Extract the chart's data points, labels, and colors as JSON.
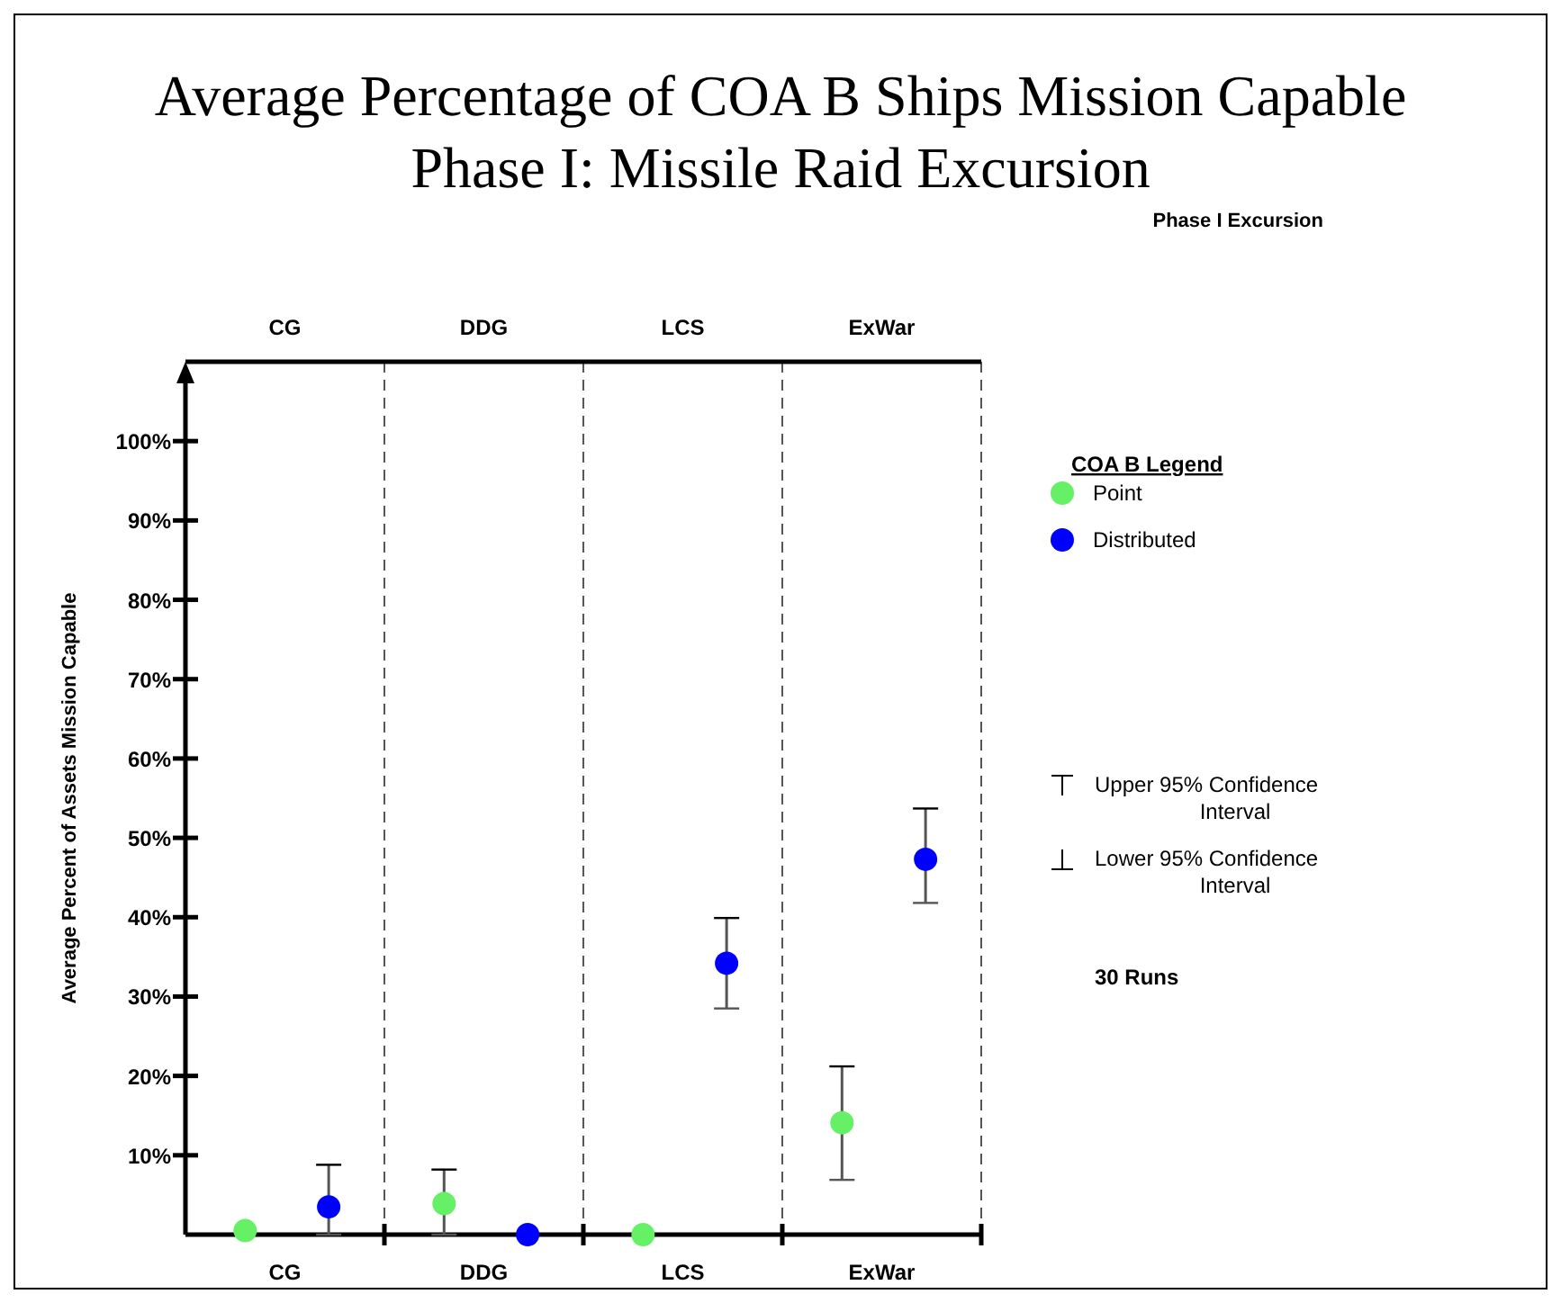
{
  "chart_data": {
    "type": "scatter",
    "title": "Average Percentage of COA B Ships Mission Capable",
    "subtitle": "Phase I: Missile Raid Excursion",
    "ylabel": "Average Percent of Assets Mission Capable",
    "legend_title": "COA B Legend",
    "legend": "right",
    "marker": "circle",
    "categories": [
      "CG",
      "DDG",
      "LCS",
      "ExWar"
    ],
    "ylim": [
      0,
      110
    ],
    "yticks": [
      {
        "value": 10,
        "label": "10%"
      },
      {
        "value": 20,
        "label": "20%"
      },
      {
        "value": 30,
        "label": "30%"
      },
      {
        "value": 40,
        "label": "40%"
      },
      {
        "value": 50,
        "label": "50%"
      },
      {
        "value": 60,
        "label": "60%"
      },
      {
        "value": 70,
        "label": "70%"
      },
      {
        "value": 80,
        "label": "80%"
      },
      {
        "value": 90,
        "label": "90%"
      },
      {
        "value": 100,
        "label": "100%"
      }
    ],
    "series": [
      {
        "name": "Point",
        "color": "#66f066",
        "values": [
          0.5,
          3.9,
          0,
          14.1
        ],
        "errors": [
          null,
          [
            0,
            8.2
          ],
          null,
          [
            6.9,
            21.2
          ]
        ]
      },
      {
        "name": "Distributed",
        "color": "#0000ff",
        "values": [
          3.5,
          0,
          34.2,
          47.3
        ],
        "errors": [
          [
            0,
            8.8
          ],
          null,
          [
            28.5,
            39.9
          ],
          [
            41.8,
            53.7
          ]
        ]
      }
    ],
    "annotations": [
      "Phase I Excursion",
      "Upper 95% Confidence Interval",
      "Lower 95% Confidence Interval",
      "30 Runs"
    ]
  }
}
